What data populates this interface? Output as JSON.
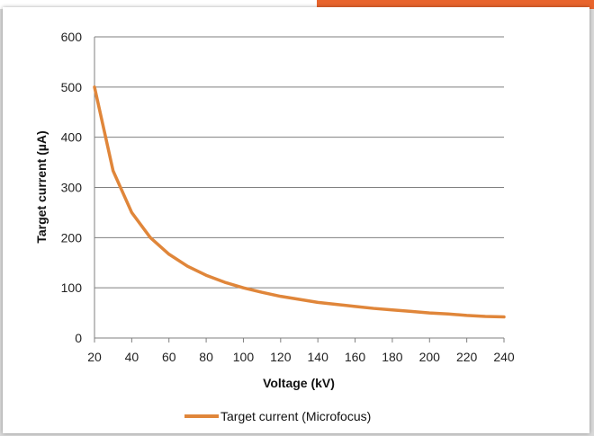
{
  "colors": {
    "series": "#e0863a",
    "grid": "#7f7f7f",
    "accent": "#e8642c"
  },
  "chart_data": {
    "type": "line",
    "xlabel": "Voltage (kV)",
    "ylabel": "Target current (µA)",
    "xlim": [
      20,
      240
    ],
    "ylim": [
      0,
      600
    ],
    "xticks": [
      "20",
      "40",
      "60",
      "80",
      "100",
      "120",
      "140",
      "160",
      "180",
      "200",
      "220",
      "240"
    ],
    "yticks": [
      "0",
      "100",
      "200",
      "300",
      "400",
      "500",
      "600"
    ],
    "grid": "horizontal",
    "legend": "bottom-center",
    "series": [
      {
        "name": "Target current (Microfocus)",
        "x": [
          20,
          30,
          40,
          50,
          60,
          70,
          80,
          90,
          100,
          110,
          120,
          130,
          140,
          150,
          160,
          170,
          180,
          190,
          200,
          210,
          220,
          230,
          240
        ],
        "values": [
          500,
          333,
          250,
          200,
          167,
          143,
          125,
          111,
          100,
          91,
          83,
          77,
          71,
          67,
          63,
          59,
          56,
          53,
          50,
          48,
          45,
          43,
          42
        ]
      }
    ]
  }
}
